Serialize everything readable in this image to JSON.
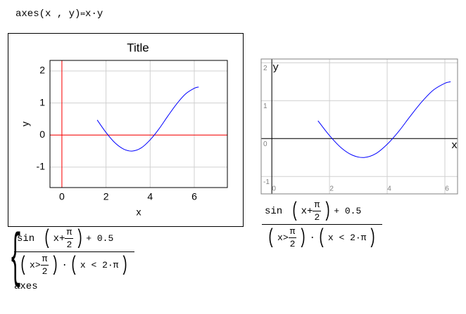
{
  "definition": {
    "name": "axes",
    "args": "(x , y)",
    "assign": "≔",
    "body": "x·y"
  },
  "chart_data": [
    {
      "type": "line",
      "title": "Title",
      "x_label": "x",
      "y_label": "y",
      "x": [
        1.6,
        2.0,
        2.4,
        2.8,
        3.2,
        3.6,
        4.0,
        4.4,
        4.8,
        5.2,
        5.6,
        6.0,
        6.2
      ],
      "values": [
        0.47,
        0.08,
        -0.24,
        -0.44,
        -0.5,
        -0.4,
        -0.15,
        0.19,
        0.59,
        0.97,
        1.28,
        1.46,
        1.5
      ],
      "color": "#0000ff",
      "axis_color": "#ff0000",
      "grid": true,
      "xlim": [
        -0.54,
        7.5
      ],
      "ylim": [
        -1.64,
        2.33
      ],
      "xticks": [
        0,
        2,
        4,
        6
      ],
      "yticks": [
        -1,
        0,
        1,
        2
      ]
    },
    {
      "type": "line",
      "x_label": "x",
      "y_label": "y",
      "x": [
        1.6,
        2.0,
        2.4,
        2.8,
        3.2,
        3.6,
        4.0,
        4.4,
        4.8,
        5.2,
        5.6,
        6.0,
        6.2
      ],
      "values": [
        0.47,
        0.08,
        -0.24,
        -0.44,
        -0.5,
        -0.4,
        -0.15,
        0.19,
        0.59,
        0.97,
        1.28,
        1.46,
        1.5
      ],
      "color": "#0000ff",
      "axis_color": "#000000",
      "grid": true,
      "xlim": [
        -0.37,
        6.44
      ],
      "ylim": [
        -1.46,
        2.1
      ],
      "xticks": [
        0,
        2,
        4,
        6
      ],
      "yticks": [
        -1,
        0,
        1,
        2
      ]
    }
  ],
  "expressions": [
    {
      "sin": "sin",
      "x_plus": "x+",
      "pi": "π",
      "two": "2",
      "plus_half": "+ 0.5",
      "x_gt": "x>",
      "pi_b": "π",
      "two_b": "2",
      "x_lt": "x < 2·π",
      "otherwise": "axes"
    },
    {
      "sin": "sin",
      "x_plus": "x+",
      "pi": "π",
      "two": "2",
      "plus_half": "+ 0.5",
      "x_gt": "x>",
      "pi_b": "π",
      "two_b": "2",
      "x_lt": "x < 2·π"
    }
  ]
}
